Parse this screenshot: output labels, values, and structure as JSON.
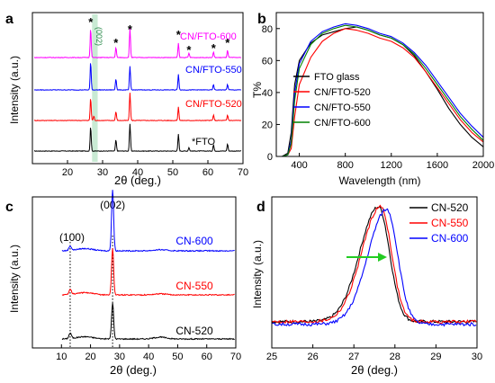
{
  "chart_data": [
    {
      "panel": "a",
      "type": "line",
      "xlabel": "2θ (deg.)",
      "ylabel": "Intensity (a.u.)",
      "xlim": [
        10,
        70
      ],
      "x_ticks": [
        "20",
        "30",
        "40",
        "50",
        "60",
        "70"
      ],
      "highlight_label": "(002)",
      "annotations": [
        "*",
        "*",
        "*",
        "*",
        "*",
        "*",
        "*"
      ],
      "series": [
        {
          "name": "*FTO",
          "color": "#000000",
          "peaks": [
            [
              26.6,
              55
            ],
            [
              33.8,
              25
            ],
            [
              37.8,
              60
            ],
            [
              51.6,
              38
            ],
            [
              54.6,
              8
            ],
            [
              61.6,
              14
            ],
            [
              65.6,
              16
            ]
          ]
        },
        {
          "name": "CN/FTO-520",
          "color": "#ff0000",
          "peaks": [
            [
              26.6,
              50
            ],
            [
              27.5,
              10
            ],
            [
              33.8,
              20
            ],
            [
              37.8,
              62
            ],
            [
              51.6,
              30
            ],
            [
              61.6,
              12
            ],
            [
              65.6,
              12
            ]
          ]
        },
        {
          "name": "CN/FTO-550",
          "color": "#0000ff",
          "peaks": [
            [
              26.6,
              62
            ],
            [
              33.8,
              25
            ],
            [
              37.8,
              52
            ],
            [
              51.6,
              35
            ],
            [
              61.6,
              12
            ],
            [
              65.6,
              12
            ]
          ]
        },
        {
          "name": "CN/FTO-600",
          "color": "#ff00ff",
          "peaks": [
            [
              26.6,
              65
            ],
            [
              33.8,
              22
            ],
            [
              37.8,
              65
            ],
            [
              51.6,
              32
            ],
            [
              54.6,
              10
            ],
            [
              61.6,
              12
            ],
            [
              65.6,
              16
            ]
          ]
        }
      ]
    },
    {
      "panel": "b",
      "type": "line",
      "xlabel": "Wavelength (nm)",
      "ylabel": "T%",
      "xlim": [
        200,
        2000
      ],
      "ylim": [
        0,
        90
      ],
      "x_ticks": [
        "400",
        "800",
        "1200",
        "1600",
        "2000"
      ],
      "y_ticks": [
        "0",
        "20",
        "40",
        "60",
        "80"
      ],
      "legend_position": "lower-left",
      "series": [
        {
          "name": "FTO glass",
          "color": "#000000",
          "x": [
            250,
            300,
            330,
            360,
            400,
            500,
            600,
            700,
            800,
            900,
            1000,
            1100,
            1200,
            1300,
            1400,
            1500,
            1600,
            1700,
            1800,
            1900,
            2000
          ],
          "y": [
            0,
            2,
            15,
            45,
            60,
            71,
            76,
            78,
            80,
            81,
            79,
            76,
            74,
            70,
            63,
            53,
            42,
            30,
            20,
            12,
            6
          ]
        },
        {
          "name": "CN/FTO-520",
          "color": "#ff0000",
          "x": [
            250,
            300,
            330,
            360,
            400,
            500,
            600,
            700,
            800,
            900,
            1000,
            1100,
            1200,
            1300,
            1400,
            1500,
            1600,
            1700,
            1800,
            1900,
            2000
          ],
          "y": [
            0,
            1,
            5,
            25,
            45,
            62,
            72,
            77,
            80,
            79,
            77,
            74,
            72,
            68,
            62,
            53,
            43,
            33,
            23,
            15,
            9
          ]
        },
        {
          "name": "CN/FTO-550",
          "color": "#0000ff",
          "x": [
            250,
            300,
            330,
            360,
            400,
            500,
            600,
            700,
            800,
            900,
            1000,
            1100,
            1200,
            1300,
            1400,
            1500,
            1600,
            1700,
            1800,
            1900,
            2000
          ],
          "y": [
            0,
            1,
            10,
            40,
            58,
            72,
            78,
            81,
            83,
            82,
            80,
            77,
            75,
            71,
            65,
            57,
            47,
            37,
            27,
            19,
            12
          ]
        },
        {
          "name": "CN/FTO-600",
          "color": "#008000",
          "x": [
            250,
            300,
            330,
            360,
            400,
            500,
            600,
            700,
            800,
            900,
            1000,
            1100,
            1200,
            1300,
            1400,
            1500,
            1600,
            1700,
            1800,
            1900,
            2000
          ],
          "y": [
            0,
            1,
            8,
            35,
            55,
            70,
            77,
            80,
            82,
            81,
            79,
            76,
            74,
            70,
            64,
            55,
            45,
            35,
            25,
            17,
            10
          ]
        }
      ]
    },
    {
      "panel": "c",
      "type": "line",
      "xlabel": "2θ (deg.)",
      "ylabel": "Intensity (a.u.)",
      "xlim": [
        0,
        70
      ],
      "x_ticks": [
        "10",
        "20",
        "30",
        "40",
        "50",
        "60",
        "70"
      ],
      "annotations": [
        "(100)",
        "(002)"
      ],
      "reference_lines_x": [
        13.0,
        27.6
      ],
      "series": [
        {
          "name": "CN-520",
          "color": "#000000",
          "peak_height": 40,
          "minor_peak": 6
        },
        {
          "name": "CN-550",
          "color": "#ff0000",
          "peak_height": 52,
          "minor_peak": 6
        },
        {
          "name": "CN-600",
          "color": "#0000ff",
          "peak_height": 68,
          "minor_peak": 5
        }
      ]
    },
    {
      "panel": "d",
      "type": "line",
      "xlabel": "2θ (deg.)",
      "ylabel": "Intensity (a.u.)",
      "xlim": [
        25,
        30
      ],
      "x_ticks": [
        "25",
        "26",
        "27",
        "28",
        "29",
        "30"
      ],
      "legend_position": "top-right",
      "series": [
        {
          "name": "CN-520",
          "color": "#000000",
          "center": 27.6
        },
        {
          "name": "CN-550",
          "color": "#ff0000",
          "center": 27.65
        },
        {
          "name": "CN-600",
          "color": "#0000ff",
          "center": 27.8
        }
      ]
    }
  ],
  "panel_labels": [
    "a",
    "b",
    "c",
    "d"
  ]
}
